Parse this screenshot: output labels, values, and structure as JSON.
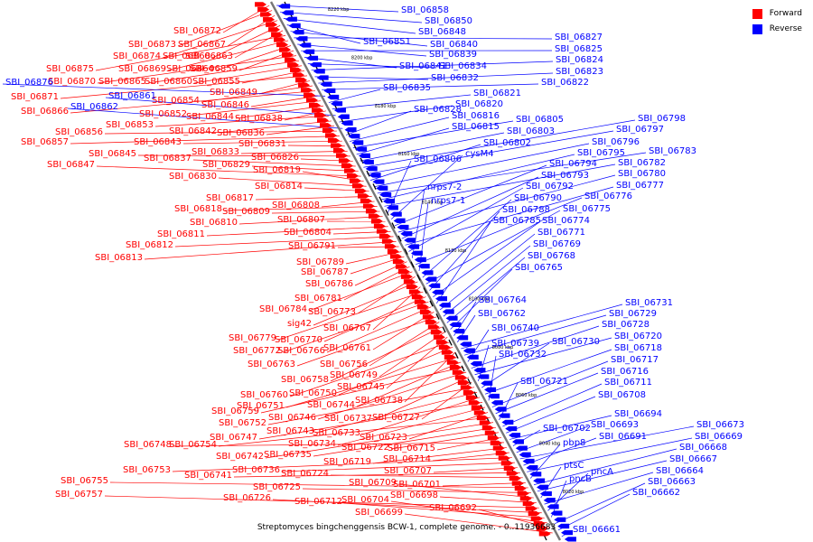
{
  "legend": {
    "forward_label": "Forward",
    "reverse_label": "Reverse",
    "forward_color": "#ff0000",
    "reverse_color": "#0000ff"
  },
  "caption": "Streptomyces bingchenggensis BCW-1, complete genome. - 0..11936683",
  "scale_ticks": [
    "8220 kbp",
    "8200 kbp",
    "8180 kbp",
    "8160 kbp",
    "8140 kbp",
    "8120 kbp",
    "8100 kbp",
    "8080 kbp",
    "8060 kbp",
    "8040 kbp",
    "8020 kbp"
  ],
  "forward_genes": [
    "SBI_06872",
    "SBI_06873",
    "SBI_06867",
    "SBI_06874",
    "SBI_06868",
    "SBI_06863",
    "SBI_06875",
    "SBI_06869",
    "SBI_06864",
    "SBI_06859",
    "SBI_06870",
    "SBI_06865",
    "SBI_06860",
    "SBI_06855",
    "SBI_06871",
    "SBI_06849",
    "SBI_06854",
    "SBI_06866",
    "SBI_06846",
    "SBI_06852",
    "SBI_06844",
    "SBI_06838",
    "SBI_06853",
    "SBI_06842",
    "SBI_06836",
    "SBI_06856",
    "SBI_06857",
    "SBI_06843",
    "SBI_06831",
    "SBI_06833",
    "SBI_06845",
    "SBI_06826",
    "SBI_06837",
    "SBI_06829",
    "SBI_06847",
    "SBI_06819",
    "SBI_06830",
    "SBI_06814",
    "SBI_06817",
    "SBI_06808",
    "SBI_06818",
    "SBI_06809",
    "SBI_06810",
    "SBI_06807",
    "SBI_06811",
    "SBI_06804",
    "SBI_06812",
    "SBI_06813",
    "SBI_06791",
    "SBI_06789",
    "SBI_06787",
    "SBI_06786",
    "SBI_06781",
    "SBI_06784",
    "SBI_06773",
    "sig42",
    "SBI_06767",
    "SBI_06779",
    "SBI_06770",
    "SBI_06772",
    "SBI_06766",
    "SBI_06761",
    "SBI_06763",
    "SBI_06756",
    "SBI_06758",
    "SBI_06749",
    "SBI_06745",
    "SBI_06760",
    "SBI_06750",
    "SBI_06738",
    "SBI_06751",
    "SBI_06744",
    "SBI_06759",
    "SBI_06746",
    "SBI_06737",
    "SBI_06727",
    "SBI_06752",
    "SBI_06743",
    "SBI_06733",
    "SBI_06747",
    "SBI_06734",
    "SBI_06723",
    "SBI_06754",
    "SBI_06742",
    "SBI_06735",
    "SBI_06722",
    "SBI_06715",
    "SBI_06748",
    "SBI_06719",
    "SBI_06714",
    "SBI_06753",
    "SBI_06736",
    "SBI_06707",
    "SBI_06741",
    "SBI_06724",
    "SBI_06701",
    "SBI_06755",
    "SBI_06725",
    "SBI_06709",
    "SBI_06698",
    "SBI_06757",
    "SBI_06726",
    "SBI_06712",
    "SBI_06704",
    "SBI_06692",
    "SBI_06699"
  ],
  "reverse_genes": [
    "SBI_06858",
    "SBI_06850",
    "SBI_06848",
    "SBI_06851",
    "SBI_06840",
    "SBI_06827",
    "SBI_06839",
    "SBI_06825",
    "SBI_06841",
    "SBI_06834",
    "SBI_06824",
    "SBI_06832",
    "SBI_06823",
    "SBI_06822",
    "SBI_06876",
    "SBI_06835",
    "SBI_06821",
    "SBI_06861",
    "SBI_06820",
    "SBI_06862",
    "SBI_06828",
    "SBI_06816",
    "SBI_06805",
    "SBI_06815",
    "SBI_06803",
    "SBI_06798",
    "SBI_06797",
    "SBI_06802",
    "SBI_06796",
    "SBI_06783",
    "SBI_06795",
    "SBI_06782",
    "SBI_06806",
    "cysM4",
    "SBI_06794",
    "SBI_06780",
    "SBI_06793",
    "SBI_06777",
    "SBI_06792",
    "nrps7-2",
    "SBI_06776",
    "nrps7-1",
    "SBI_06790",
    "SBI_06775",
    "SBI_06788",
    "SBI_06774",
    "SBI_06785",
    "SBI_06771",
    "SBI_06769",
    "SBI_06768",
    "SBI_06765",
    "SBI_06764",
    "SBI_06762",
    "SBI_06731",
    "SBI_06729",
    "SBI_06740",
    "SBI_06728",
    "SBI_06720",
    "SBI_06739",
    "SBI_06730",
    "SBI_06718",
    "SBI_06732",
    "SBI_06717",
    "SBI_06716",
    "SBI_06721",
    "SBI_06711",
    "SBI_06708",
    "SBI_06694",
    "SBI_06702",
    "SBI_06693",
    "SBI_06673",
    "SBI_06691",
    "SBI_06669",
    "pbp8",
    "SBI_06668",
    "SBI_06667",
    "ptsC",
    "SBI_06664",
    "pncA",
    "pncB",
    "SBI_06663",
    "SBI_06662",
    "SBI_06661"
  ]
}
